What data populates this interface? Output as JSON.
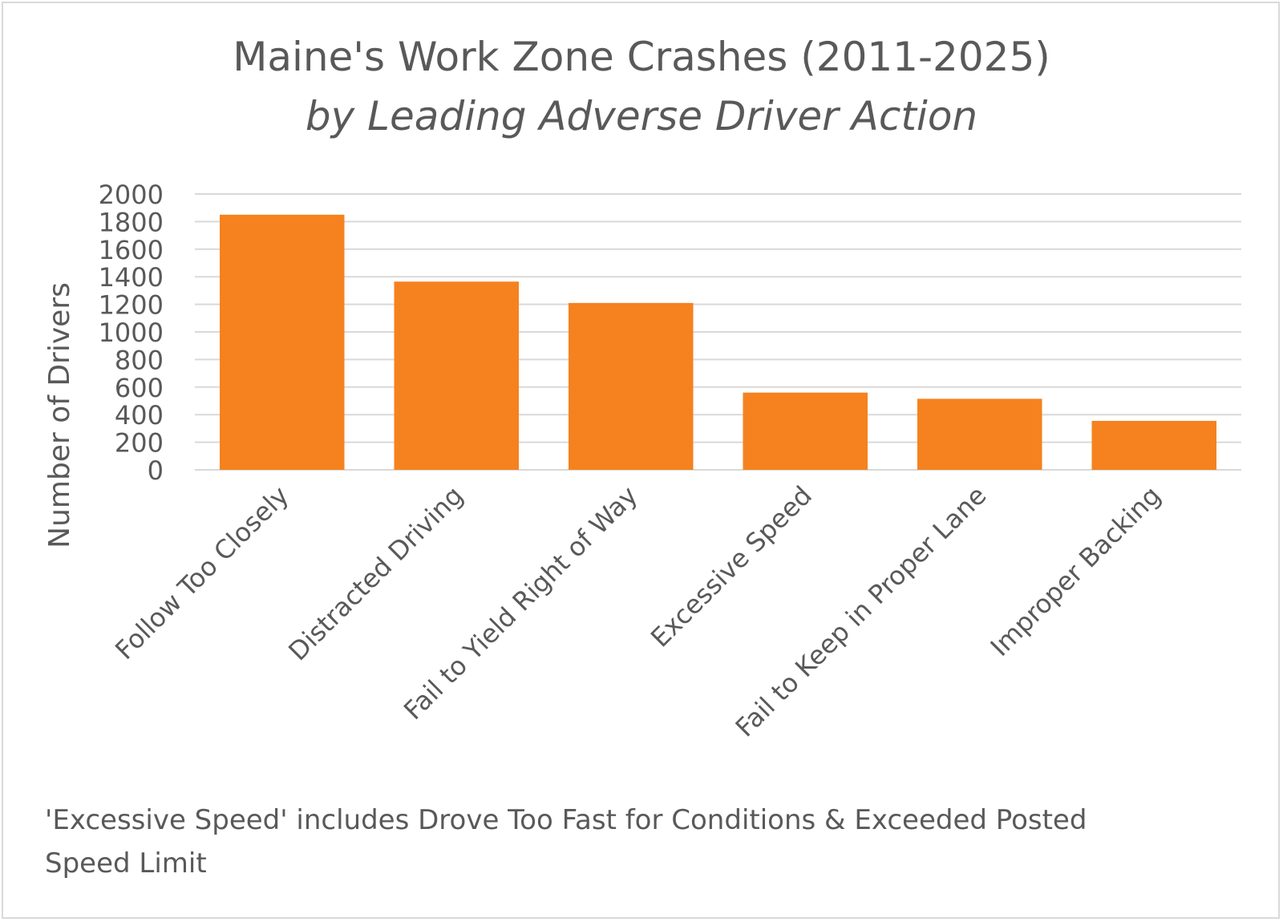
{
  "chart_data": {
    "type": "bar",
    "title": "Maine's Work Zone Crashes (2011-2025)",
    "subtitle": "by Leading Adverse Driver Action",
    "xlabel": "",
    "ylabel": "Number of Drivers",
    "ylim": [
      0,
      2000
    ],
    "yticks": [
      0,
      200,
      400,
      600,
      800,
      1000,
      1200,
      1400,
      1600,
      1800,
      2000
    ],
    "categories": [
      "Follow Too Closely",
      "Distracted Driving",
      "Fail to Yield Right of Way",
      "Excessive Speed",
      "Fail to Keep in Proper Lane",
      "Improper Backing"
    ],
    "values": [
      1850,
      1365,
      1210,
      560,
      515,
      355
    ],
    "bar_color": "#f5821f",
    "grid": true,
    "legend": "none",
    "footnote": "'Excessive Speed' includes Drove Too Fast for Conditions & Exceeded Posted Speed Limit"
  }
}
